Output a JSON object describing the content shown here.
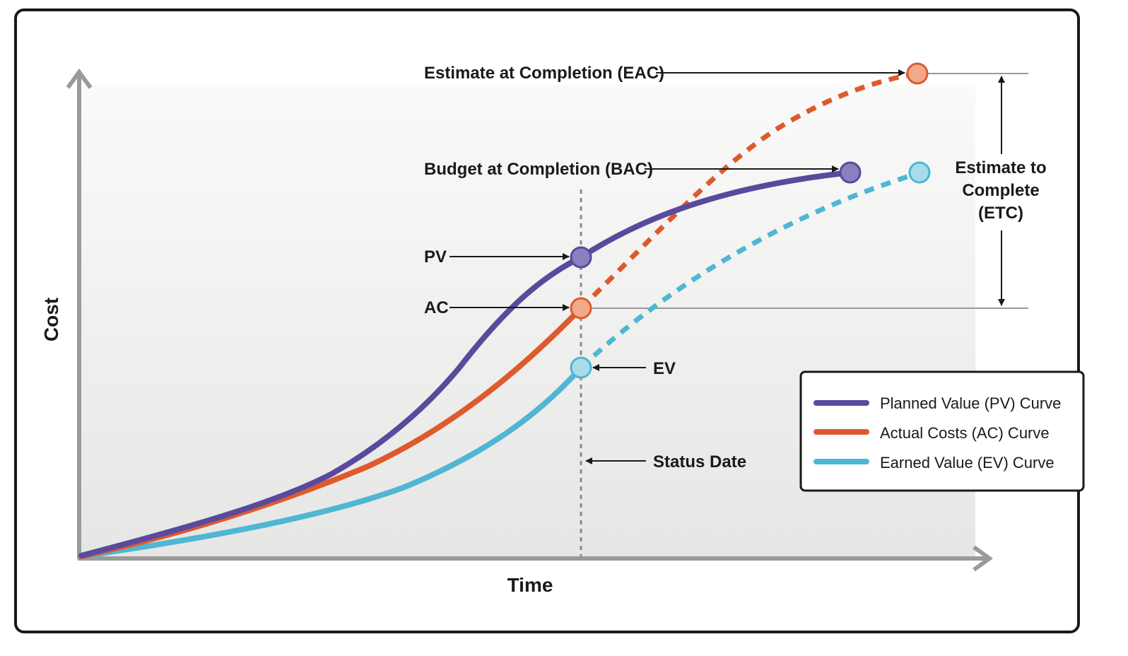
{
  "axes": {
    "x_label": "Time",
    "y_label": "Cost"
  },
  "callouts": {
    "eac": "Estimate at Completion (EAC)",
    "bac": "Budget at Completion (BAC)",
    "pv": "PV",
    "ac": "AC",
    "ev": "EV",
    "status_date": "Status Date",
    "etc_line1": "Estimate to",
    "etc_line2": "Complete",
    "etc_line3": "(ETC)"
  },
  "legend": [
    {
      "label": "Planned Value (PV) Curve",
      "color": "#5a4a9c"
    },
    {
      "label": "Actual Costs (AC) Curve",
      "color": "#de5a2c"
    },
    {
      "label": "Earned Value (EV) Curve",
      "color": "#4fb6d3"
    }
  ],
  "colors": {
    "pv": "#5a4a9c",
    "pv_point": "#8a7fc0",
    "ac": "#de5a2c",
    "ac_point": "#f2a98a",
    "ev": "#4fb6d3",
    "ev_point": "#a8dcea",
    "axis": "#9a9a9a",
    "guide": "#9a9a9a"
  }
}
